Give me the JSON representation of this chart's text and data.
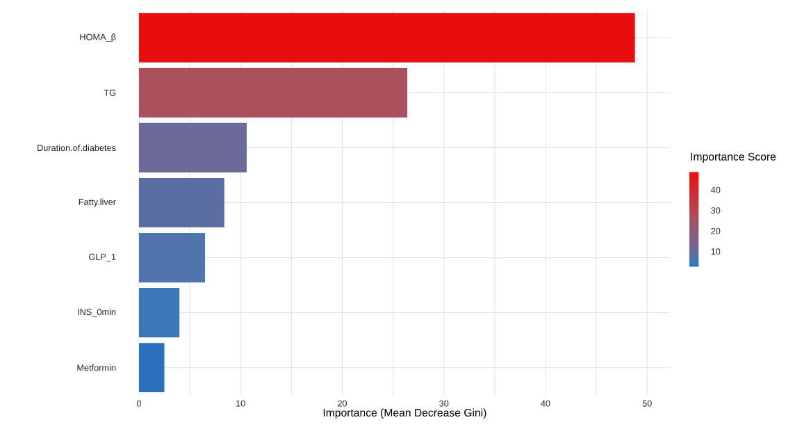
{
  "chart_data": {
    "type": "bar",
    "orientation": "horizontal",
    "categories": [
      "HOMA_β",
      "TG",
      "Duration.of.diabetes",
      "Fatty.liver",
      "GLP_1",
      "INS_0min",
      "Metformin"
    ],
    "values": [
      48.8,
      26.4,
      10.6,
      8.4,
      6.5,
      4.0,
      2.5
    ],
    "colors": [
      "#e80f0f",
      "#a8505e",
      "#6a6a98",
      "#5b6ea2",
      "#4f74ae",
      "#3b77b6",
      "#2a70ba"
    ],
    "xlabel": "Importance (Mean Decrease Gini)",
    "xlim": [
      0,
      52.3
    ],
    "xticks": [
      0,
      10,
      20,
      30,
      40,
      50
    ],
    "clabel": "Importance Score",
    "clim": [
      2.5,
      48.8
    ],
    "cticks": [
      10,
      20,
      30,
      40
    ],
    "grid": true
  }
}
